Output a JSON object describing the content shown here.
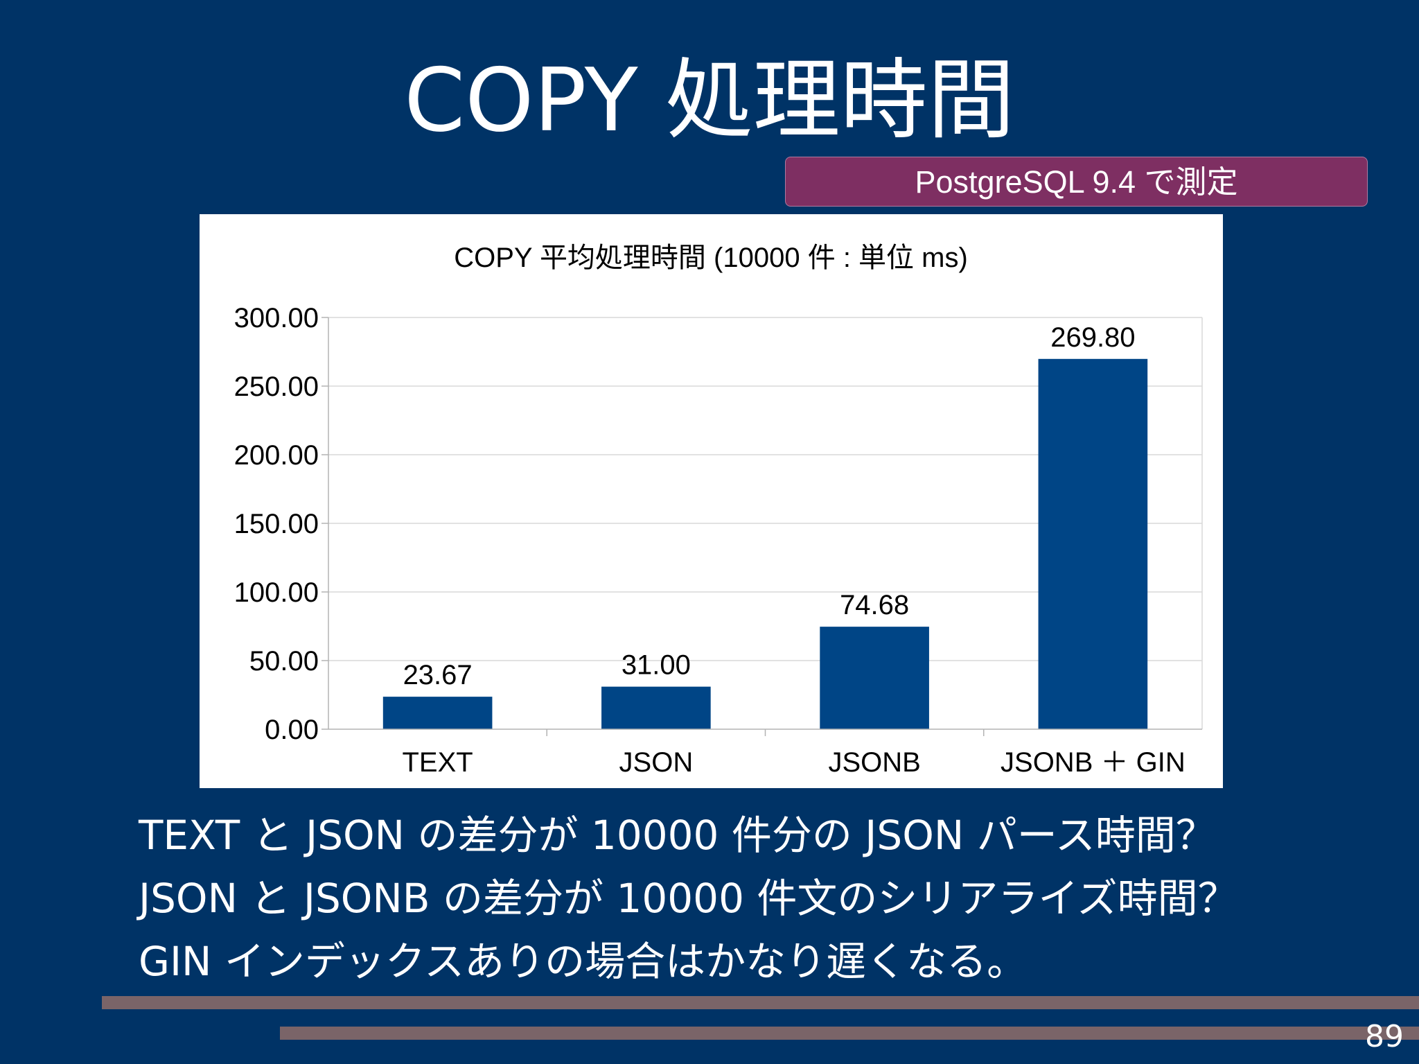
{
  "slide": {
    "title": "COPY 処理時間",
    "badge": "PostgreSQL 9.4 で測定",
    "page_number": "89"
  },
  "bullets": [
    "TEXT と JSON の差分が 10000 件分の JSON パース時間？",
    "JSON と JSONB の差分が 10000 件文のシリアライズ時間？",
    "GIN インデックスありの場合はかなり遅くなる。"
  ],
  "chart_data": {
    "type": "bar",
    "title": "COPY 平均処理時間 (10000 件 : 単位 ms)",
    "categories": [
      "TEXT",
      "JSON",
      "JSONB",
      "JSONB ＋ GIN"
    ],
    "values": [
      23.67,
      31.0,
      74.68,
      269.8
    ],
    "value_labels": [
      "23.67",
      "31.00",
      "74.68",
      "269.80"
    ],
    "ylim": [
      0,
      300
    ],
    "yticks": [
      0,
      50,
      100,
      150,
      200,
      250,
      300
    ],
    "ytick_labels": [
      "0.00",
      "50.00",
      "100.00",
      "150.00",
      "200.00",
      "250.00",
      "300.00"
    ],
    "xlabel": "",
    "ylabel": "",
    "grid": true,
    "legend": "none",
    "bar_color": "#004586"
  }
}
